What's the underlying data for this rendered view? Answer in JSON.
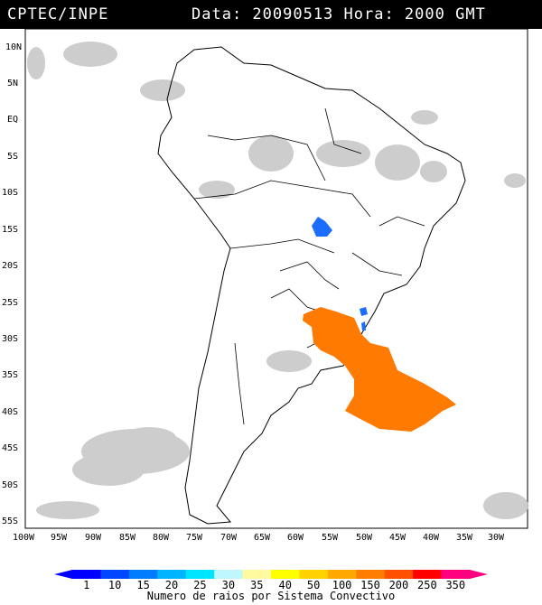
{
  "header": {
    "source": "CPTEC/INPE",
    "datetime": "Data: 20090513 Hora: 2000 GMT"
  },
  "map": {
    "region": "South America",
    "lat_ticks": [
      "10N",
      "5N",
      "EQ",
      "5S",
      "10S",
      "15S",
      "20S",
      "25S",
      "30S",
      "35S",
      "40S",
      "45S",
      "50S",
      "55S"
    ],
    "lon_ticks": [
      "100W",
      "95W",
      "90W",
      "85W",
      "80W",
      "75W",
      "70W",
      "65W",
      "60W",
      "55W",
      "50W",
      "45W",
      "40W",
      "35W",
      "30W"
    ],
    "colors": {
      "land_outline": "#000000",
      "clouds": "#c8c8c8",
      "low_activity": "#1a6dff",
      "high_activity": "#ff7a00"
    }
  },
  "colorbar": {
    "labels": [
      "1",
      "10",
      "15",
      "20",
      "25",
      "30",
      "35",
      "40",
      "50",
      "100",
      "150",
      "200",
      "250",
      "350"
    ],
    "colors": [
      "#0000ff",
      "#0047ff",
      "#007dff",
      "#00b4ff",
      "#00e5ff",
      "#bff7ff",
      "#fffaa0",
      "#ffff00",
      "#ffd200",
      "#ffa800",
      "#ff7d00",
      "#ff5000",
      "#ff0000",
      "#ff0080"
    ],
    "title": "Numero de raios por Sistema Convectivo"
  }
}
